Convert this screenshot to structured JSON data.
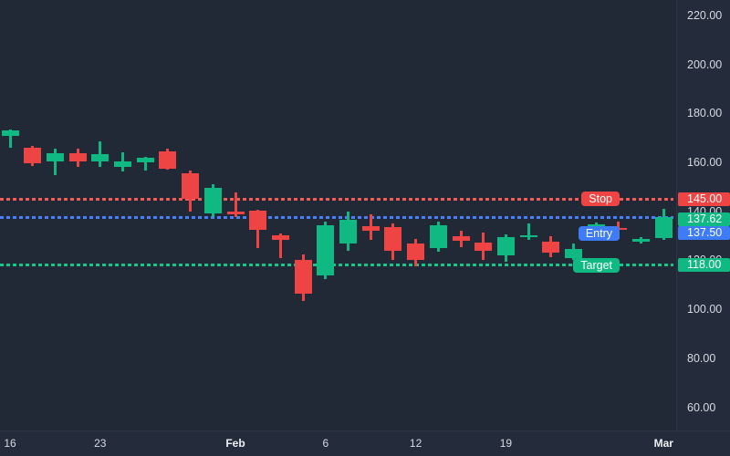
{
  "chart_data": {
    "type": "candlestick",
    "title": "",
    "legend": null,
    "grid": false,
    "price_axis": {
      "tick_labels": [
        "220.00",
        "200.00",
        "180.00",
        "160.00",
        "140.00",
        "120.00",
        "100.00",
        "80.00",
        "60.00"
      ],
      "tick_values": [
        220,
        200,
        180,
        160,
        140,
        120,
        100,
        80,
        60
      ],
      "visible_range": [
        50.5,
        226.3
      ]
    },
    "time_axis": {
      "ticks": [
        {
          "candle_index": 0,
          "label": "16",
          "bold": false
        },
        {
          "candle_index": 4,
          "label": "23",
          "bold": false
        },
        {
          "candle_index": 10,
          "label": "Feb",
          "bold": true
        },
        {
          "candle_index": 14,
          "label": "6",
          "bold": false
        },
        {
          "candle_index": 18,
          "label": "12",
          "bold": false
        },
        {
          "candle_index": 22,
          "label": "19",
          "bold": false
        },
        {
          "candle_index": 29,
          "label": "Mar",
          "bold": true
        }
      ]
    },
    "candles": [
      {
        "o": 171.0,
        "h": 173.5,
        "l": 166.0,
        "c": 173.2
      },
      {
        "o": 166.0,
        "h": 166.8,
        "l": 158.6,
        "c": 159.6
      },
      {
        "o": 160.5,
        "h": 165.8,
        "l": 154.9,
        "c": 163.7
      },
      {
        "o": 163.9,
        "h": 165.5,
        "l": 158.1,
        "c": 160.4
      },
      {
        "o": 160.5,
        "h": 168.6,
        "l": 158.3,
        "c": 163.3
      },
      {
        "o": 158.3,
        "h": 164.0,
        "l": 156.2,
        "c": 160.3
      },
      {
        "o": 160.0,
        "h": 162.2,
        "l": 156.8,
        "c": 161.8
      },
      {
        "o": 164.5,
        "h": 165.8,
        "l": 156.9,
        "c": 157.4
      },
      {
        "o": 155.6,
        "h": 156.6,
        "l": 139.9,
        "c": 145.0
      },
      {
        "o": 139.2,
        "h": 151.2,
        "l": 137.6,
        "c": 149.7
      },
      {
        "o": 140.0,
        "h": 147.9,
        "l": 137.6,
        "c": 138.8
      },
      {
        "o": 140.4,
        "h": 140.8,
        "l": 125.1,
        "c": 132.6
      },
      {
        "o": 130.2,
        "h": 131.0,
        "l": 120.8,
        "c": 128.3
      },
      {
        "o": 120.2,
        "h": 122.4,
        "l": 103.4,
        "c": 106.5
      },
      {
        "o": 114.0,
        "h": 135.7,
        "l": 112.4,
        "c": 134.5
      },
      {
        "o": 126.8,
        "h": 140.1,
        "l": 123.9,
        "c": 136.5
      },
      {
        "o": 133.8,
        "h": 138.8,
        "l": 128.3,
        "c": 132.0
      },
      {
        "o": 133.5,
        "h": 135.1,
        "l": 120.2,
        "c": 123.9
      },
      {
        "o": 127.0,
        "h": 128.9,
        "l": 117.5,
        "c": 120.3
      },
      {
        "o": 125.1,
        "h": 135.7,
        "l": 123.5,
        "c": 134.2
      },
      {
        "o": 129.8,
        "h": 132.2,
        "l": 125.5,
        "c": 128.0
      },
      {
        "o": 127.3,
        "h": 131.4,
        "l": 120.2,
        "c": 123.9
      },
      {
        "o": 122.1,
        "h": 130.7,
        "l": 119.6,
        "c": 129.5
      },
      {
        "o": 129.6,
        "h": 135.1,
        "l": 128.3,
        "c": 130.4
      },
      {
        "o": 127.7,
        "h": 129.8,
        "l": 121.4,
        "c": 123.3
      },
      {
        "o": 120.8,
        "h": 127.0,
        "l": 120.3,
        "c": 124.5
      },
      {
        "o": 130.1,
        "h": 135.3,
        "l": 129.5,
        "c": 134.7
      },
      {
        "o": 133.4,
        "h": 135.7,
        "l": 128.9,
        "c": 132.6
      },
      {
        "o": 127.6,
        "h": 129.5,
        "l": 127.0,
        "c": 128.7
      },
      {
        "o": 129.0,
        "h": 141.0,
        "l": 128.5,
        "c": 137.62
      }
    ],
    "levels": [
      {
        "name": "Stop",
        "price": 145.0,
        "label": "145.00",
        "color": "#ef4444",
        "line_color": "#f25c57"
      },
      {
        "name": "Entry",
        "price": 137.5,
        "label": "137.50",
        "color": "#3d7bf7",
        "line_color": "#4a80f7"
      },
      {
        "name": "Target",
        "price": 118.0,
        "label": "118.00",
        "color": "#10b981",
        "line_color": "#16c78a"
      }
    ],
    "last_price": {
      "value": 137.62,
      "label": "137.62",
      "color": "#10b981"
    },
    "colors": {
      "up": "#10b981",
      "down": "#ef4444",
      "background": "#212937",
      "axis_background": "#242b3a",
      "axis_text": "#d6dbe3",
      "border": "#2d3545",
      "label_text": "#ffffff"
    }
  }
}
